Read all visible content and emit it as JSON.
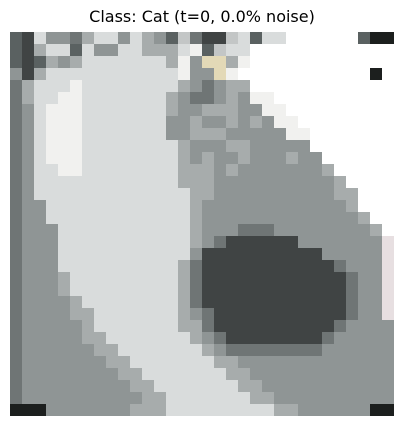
{
  "figure": {
    "title": "Class: Cat (t=0, 0.0% noise)"
  },
  "image": {
    "subject": "pixelated low-resolution photo of a gray and white cat",
    "grid_size": 32,
    "palette": {
      "white": "#ffffff",
      "offwhite": "#f1f1ef",
      "light": "#d9dcdc",
      "light_gray": "#c3c6c6",
      "mid_gray": "#a7acac",
      "gray": "#8f9595",
      "dark_gray": "#6f7575",
      "slate": "#5a6161",
      "deep": "#404444",
      "black": "#1c1f1e",
      "beige": "#e3d9b7",
      "pink": "#e7dfe1"
    },
    "rows": [
      "KDLGGFHLLGLHGKMFDDMLKLLBBBBBBKQQ",
      "KDHLLKLGGLLHHHLCKMLLBBBBBBBBBBBB",
      "KDEHGHLLLLLLLHCGIIHWBBBBBBBBBBBB",
      "GDHLLLLLLLLLLLCGGIWBBBBBBBBBBBAB",
      "FHLLLCLLLLLLLLHGFGHHBBBBBBBBBBBB",
      "FHLLCCLLLLLLLHGFFGHGWWBBBBBBBBBB",
      "FGLCCCLLLLLLLHGGHHHGGWWBBBBBBBBB",
      "FGLCCCLLLLLLLGGHGGHGHGWWBBBBBBBB",
      "FGLCCCLLLLLLLGGHHHGGGGGWWBBBBBBB",
      "FGLCCCLLLLLLLLHGGGHHGGGGGBBBBBBB",
      "FGLCCCLLLLLLLLHGHGGHGGGHGGBBBBBB",
      "FGLLCCLLLLLLLLHHHGHGGGGGGGHBBBBB",
      "FGLLLLLLLLLLLLHHHGGGGGGGGGGHBBBB",
      "FGLLLLLLLLLLLLLHHGGGGGGGGGGHHBBB",
      "FGGLLLLLLLLLLLLHGGGGGGGGGGGGHBBB",
      "FGGLLLLLLLLLLLLHGGGGGGGGGGGGGHBB",
      "FGGGLLLLLLLLLLLHGGGFFFGGGGGGGGHB",
      "FGGGLLLLLLLLLLLHGFDDDDDDGGGGGGGP",
      "FGGGLLLLLLLLLLLGDDDDDDDDDDGGGGGP",
      "FGGGLLLLLLLLLLHFDDDDDDDDDDDFGGGP",
      "FGGGHLLLLLLLLLHFDDDDDDDDDDDDFGGP",
      "FGGGHLLLLLLLLLHFDDDDDDDDDDDDFGGP",
      "FGGGGHLLLLLLLLHFDDDDDDDDDDDDFGGP",
      "FGGGGHHLLLLLLLHGFDDDDDDDDDDDFGGP",
      "FGGGGGHLLLLLLLHHFDDDDDDDDDDFGGGG",
      "FGGGGGHHLLLLLLLHGFDDDDDDDDFGGGGG",
      "FGGGGGGHHLLLLLLLHGFFFFFFFFGGGGGG",
      "FGGGGGGGHHLLLLLLLHHGGGGGGGGGGGGG",
      "FGGGGGGGGHHLLLLLLLHHGGGGGGGGGGGG",
      "FGGGGGGGGGHHLLLLLLLHHGGGGGGGGGGG",
      "FGGGGGGGGGGHHLLLLLLLHHGGGGGGGGGG",
      "AAAGGGGGGGHHHLLLLLLLLLHHGGGGGGAA"
    ],
    "legend": {
      "A": "black",
      "B": "white",
      "C": "offwhite",
      "D": "deep",
      "E": "slate",
      "F": "dark_gray",
      "G": "gray",
      "H": "mid_gray",
      "I": "beige",
      "K": "slate",
      "L": "light",
      "M": "light_gray",
      "P": "pink",
      "Q": "black",
      "W": "offwhite"
    }
  }
}
